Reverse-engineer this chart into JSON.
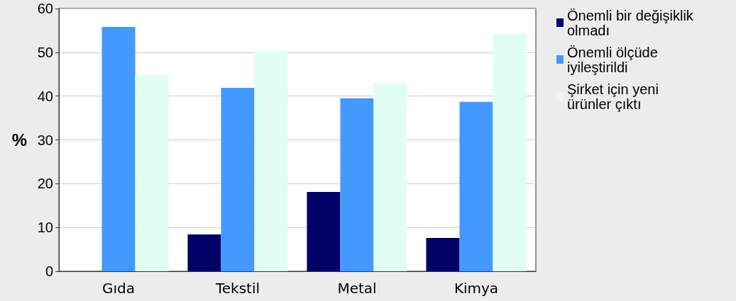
{
  "chart_data": {
    "type": "bar",
    "ylabel": "%",
    "categories": [
      "Gıda",
      "Tekstil",
      "Metal",
      "Kimya"
    ],
    "series": [
      {
        "name": "Önemli bir değişiklik olmadı",
        "color": "#000066",
        "values": [
          null,
          8.4,
          18.1,
          7.6
        ]
      },
      {
        "name": "Önemli ölçüde iyileştirildi",
        "color": "#4499ff",
        "values": [
          55.8,
          41.9,
          39.5,
          38.7
        ]
      },
      {
        "name": "Şirket için yeni ürünler çıktı",
        "color": "#e0fff0",
        "values": [
          44.8,
          50.3,
          43.0,
          54.2
        ]
      }
    ],
    "ylim": [
      0,
      60
    ],
    "yticks": [
      0,
      10,
      20,
      30,
      40,
      50,
      60
    ],
    "grid": "y",
    "legend": "right"
  }
}
